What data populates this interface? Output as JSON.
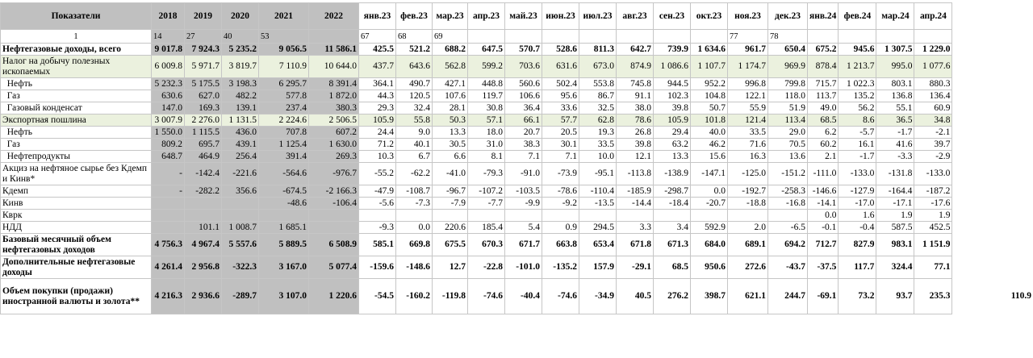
{
  "header": {
    "label": "Показатели",
    "years": [
      "2018",
      "2019",
      "2020",
      "2021",
      "2022"
    ],
    "months": [
      "янв.23",
      "фев.23",
      "мар.23",
      "апр.23",
      "май.23",
      "июн.23",
      "июл.23",
      "авг.23",
      "сен.23",
      "окт.23",
      "ноя.23",
      "дек.23",
      "янв.24",
      "фев.24",
      "мар.24",
      "апр.24"
    ]
  },
  "number_row": [
    "1",
    "14",
    "27",
    "40",
    "53",
    "",
    "67",
    "68",
    "69",
    "",
    "",
    "",
    "",
    "",
    "",
    "",
    "77",
    "78",
    "",
    "",
    "",
    ""
  ],
  "rows": [
    {
      "label": "Нефтегазовые доходы, всего",
      "bold": true,
      "hl": false,
      "lines": 1,
      "values": [
        "9 017.8",
        "7 924.3",
        "5 235.2",
        "9 056.5",
        "11 586.1",
        "425.5",
        "521.2",
        "688.2",
        "647.5",
        "570.7",
        "528.6",
        "811.3",
        "642.7",
        "739.9",
        "1 634.6",
        "961.7",
        "650.4",
        "675.2",
        "945.6",
        "1 307.5",
        "1 229.0"
      ]
    },
    {
      "label": "Налог на добычу полезных ископаемых",
      "bold": false,
      "hl": true,
      "lines": 2,
      "values": [
        "6 009.8",
        "5 971.7",
        "3 819.7",
        "7 110.9",
        "10 644.0",
        "437.7",
        "643.6",
        "562.8",
        "599.2",
        "703.6",
        "631.6",
        "673.0",
        "874.9",
        "1 086.6",
        "1 107.7",
        "1 174.7",
        "969.9",
        "878.4",
        "1 213.7",
        "995.0",
        "1 077.6"
      ]
    },
    {
      "label": "  Нефть",
      "bold": false,
      "hl": false,
      "lines": 1,
      "values": [
        "5 232.3",
        "5 175.5",
        "3 198.3",
        "6 295.7",
        "8 391.4",
        "364.1",
        "490.7",
        "427.1",
        "448.8",
        "560.6",
        "502.4",
        "553.8",
        "745.8",
        "944.5",
        "952.2",
        "996.8",
        "799.8",
        "715.7",
        "1 022.3",
        "803.1",
        "880.3"
      ]
    },
    {
      "label": "  Газ",
      "bold": false,
      "hl": false,
      "lines": 1,
      "values": [
        "630.6",
        "627.0",
        "482.2",
        "577.8",
        "1 872.0",
        "44.3",
        "120.5",
        "107.6",
        "119.7",
        "106.6",
        "95.6",
        "86.7",
        "91.1",
        "102.3",
        "104.8",
        "122.1",
        "118.0",
        "113.7",
        "135.2",
        "136.8",
        "136.4"
      ]
    },
    {
      "label": "  Газовый конденсат",
      "bold": false,
      "hl": false,
      "lines": 1,
      "values": [
        "147.0",
        "169.3",
        "139.1",
        "237.4",
        "380.3",
        "29.3",
        "32.4",
        "28.1",
        "30.8",
        "36.4",
        "33.6",
        "32.5",
        "38.0",
        "39.8",
        "50.7",
        "55.9",
        "51.9",
        "49.0",
        "56.2",
        "55.1",
        "60.9"
      ]
    },
    {
      "label": "Экспортная пошлина",
      "bold": false,
      "hl": true,
      "lines": 1,
      "values": [
        "3 007.9",
        "2 276.0",
        "1 131.5",
        "2 224.6",
        "2 506.5",
        "105.9",
        "55.8",
        "50.3",
        "57.1",
        "66.1",
        "57.7",
        "62.8",
        "78.6",
        "105.9",
        "101.8",
        "121.4",
        "113.4",
        "68.5",
        "8.6",
        "36.5",
        "34.8"
      ]
    },
    {
      "label": "  Нефть",
      "bold": false,
      "hl": false,
      "lines": 1,
      "values": [
        "1 550.0",
        "1 115.5",
        "436.0",
        "707.8",
        "607.2",
        "24.4",
        "9.0",
        "13.3",
        "18.0",
        "20.7",
        "20.5",
        "19.3",
        "26.8",
        "29.4",
        "40.0",
        "33.5",
        "29.0",
        "6.2",
        "-5.7",
        "-1.7",
        "-2.1"
      ]
    },
    {
      "label": "  Газ",
      "bold": false,
      "hl": false,
      "lines": 1,
      "values": [
        "809.2",
        "695.7",
        "439.1",
        "1 125.4",
        "1 630.0",
        "71.2",
        "40.1",
        "30.5",
        "31.0",
        "38.3",
        "30.1",
        "33.5",
        "39.8",
        "63.2",
        "46.2",
        "71.6",
        "70.5",
        "60.2",
        "16.1",
        "41.6",
        "39.7"
      ]
    },
    {
      "label": "  Нефтепродукты",
      "bold": false,
      "hl": false,
      "lines": 1,
      "values": [
        "648.7",
        "464.9",
        "256.4",
        "391.4",
        "269.3",
        "10.3",
        "6.7",
        "6.6",
        "8.1",
        "7.1",
        "7.1",
        "10.0",
        "12.1",
        "13.3",
        "15.6",
        "16.3",
        "13.6",
        "2.1",
        "-1.7",
        "-3.3",
        "-2.9"
      ]
    },
    {
      "label": "Акциз на нефтяное сырье без Кдемп и Кинв*",
      "bold": false,
      "hl": false,
      "lines": 2,
      "values": [
        "-",
        "-142.4",
        "-221.6",
        "-564.6",
        "-976.7",
        "-55.2",
        "-62.2",
        "-41.0",
        "-79.3",
        "-91.0",
        "-73.9",
        "-95.1",
        "-113.8",
        "-138.9",
        "-147.1",
        "-125.0",
        "-151.2",
        "-111.0",
        "-133.0",
        "-131.8",
        "-133.0"
      ]
    },
    {
      "label": "Кдемп",
      "bold": false,
      "hl": false,
      "lines": 1,
      "values": [
        "-",
        "-282.2",
        "356.6",
        "-674.5",
        "-2 166.3",
        "-47.9",
        "-108.7",
        "-96.7",
        "-107.2",
        "-103.5",
        "-78.6",
        "-110.4",
        "-185.9",
        "-298.7",
        "0.0",
        "-192.7",
        "-258.3",
        "-146.6",
        "-127.9",
        "-164.4",
        "-187.2"
      ]
    },
    {
      "label": "Кинв",
      "bold": false,
      "hl": false,
      "lines": 1,
      "values": [
        "",
        "",
        "",
        "-48.6",
        "-106.4",
        "-5.6",
        "-7.3",
        "-7.9",
        "-7.7",
        "-9.9",
        "-9.2",
        "-13.5",
        "-14.4",
        "-18.4",
        "-20.7",
        "-18.8",
        "-16.8",
        "-14.1",
        "-17.0",
        "-17.1",
        "-17.6"
      ]
    },
    {
      "label": "Кврк",
      "bold": false,
      "hl": false,
      "lines": 1,
      "values": [
        "",
        "",
        "",
        "",
        "",
        "",
        "",
        "",
        "",
        "",
        "",
        "",
        "",
        "",
        "",
        "",
        "",
        "0.0",
        "1.6",
        "1.9",
        "1.9"
      ]
    },
    {
      "label": "НДД",
      "bold": false,
      "hl": false,
      "lines": 1,
      "values": [
        "",
        "101.1",
        "1 008.7",
        "1 685.1",
        "",
        "-9.3",
        "0.0",
        "220.6",
        "185.4",
        "5.4",
        "0.9",
        "294.5",
        "3.3",
        "3.4",
        "592.9",
        "2.0",
        "-6.5",
        "-0.1",
        "-0.4",
        "587.5",
        "452.5"
      ]
    },
    {
      "label": "Базовый месячный объем нефтегазовых доходов",
      "bold": true,
      "hl": false,
      "lines": 2,
      "values": [
        "4 756.3",
        "4 967.4",
        "5 557.6",
        "5 889.5",
        "6 508.9",
        "585.1",
        "669.8",
        "675.5",
        "670.3",
        "671.7",
        "663.8",
        "653.4",
        "671.8",
        "671.3",
        "684.0",
        "689.1",
        "694.2",
        "712.7",
        "827.9",
        "983.1",
        "1 151.9"
      ]
    },
    {
      "label": "Дополнительные нефтегазовые доходы",
      "bold": true,
      "hl": false,
      "lines": 2,
      "values": [
        "4 261.4",
        "2 956.8",
        "-322.3",
        "3 167.0",
        "5 077.4",
        "-159.6",
        "-148.6",
        "12.7",
        "-22.8",
        "-101.0",
        "-135.2",
        "157.9",
        "-29.1",
        "68.5",
        "950.6",
        "272.6",
        "-43.7",
        "-37.5",
        "117.7",
        "324.4",
        "77.1"
      ]
    },
    {
      "label": "Объем покупки (продажи) иностранной валюты и золота**",
      "bold": true,
      "hl": false,
      "lines": 3,
      "values": [
        "4 216.3",
        "2 936.6",
        "-289.7",
        "3 107.0",
        "1 220.6",
        "-54.5",
        "-160.2",
        "-119.8",
        "-74.6",
        "-40.4",
        "-74.6",
        "-34.9",
        "40.5",
        "276.2",
        "398.7",
        "621.1",
        "244.7",
        "-69.1",
        "73.2",
        "93.7",
        "235.3"
      ]
    }
  ],
  "extra_value": "110.9"
}
